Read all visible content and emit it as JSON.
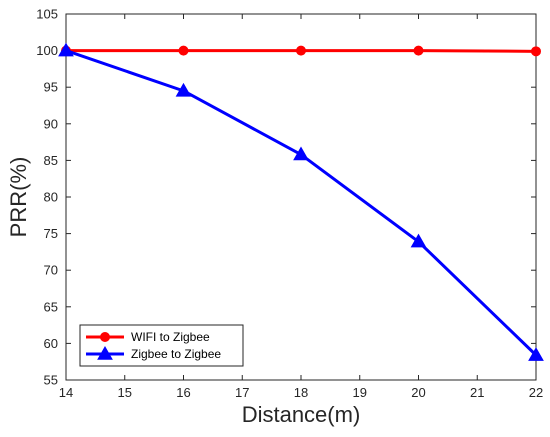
{
  "chart_data": {
    "type": "line",
    "xlabel": "Distance(m)",
    "ylabel": "PRR(%)",
    "xlim": [
      14,
      22
    ],
    "ylim": [
      55,
      105
    ],
    "xticks": [
      14,
      15,
      16,
      17,
      18,
      19,
      20,
      21,
      22
    ],
    "yticks": [
      55,
      60,
      65,
      70,
      75,
      80,
      85,
      90,
      95,
      100,
      105
    ],
    "grid": false,
    "legend_position": "bottom-left",
    "series": [
      {
        "name": "WIFI to Zigbee",
        "x": [
          14,
          16,
          18,
          20,
          22
        ],
        "y": [
          100,
          100,
          100,
          100,
          99.9
        ],
        "color": "#ff0000",
        "marker": "circle"
      },
      {
        "name": "Zigbee to Zigbee",
        "x": [
          14,
          16,
          18,
          20,
          22
        ],
        "y": [
          100,
          94.5,
          85.8,
          73.9,
          58.4
        ],
        "color": "#0000ff",
        "marker": "triangle"
      }
    ]
  }
}
